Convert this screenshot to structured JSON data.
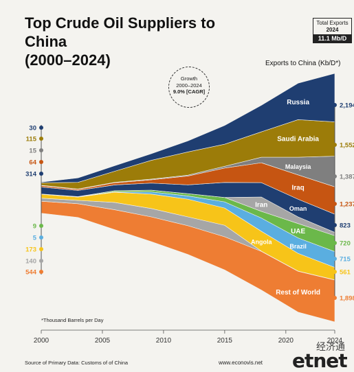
{
  "header": {
    "title_line1": "Top Crude Oil Suppliers to China",
    "title_line2": "(2000–2024)"
  },
  "total_box": {
    "label": "Total Exports",
    "year": "2024",
    "value": "11.1 Mb/D"
  },
  "exports_label": "Exports to China (Kb/D*)",
  "growth_badge": {
    "line1": "Growth",
    "line2": "2000–2024",
    "value": "9.0% [CAGR]"
  },
  "footnote": "*Thousand Barrels per Day",
  "source": "Source of Primary Data: Customs of of China",
  "site": "www.econovis.net",
  "watermark": {
    "cn": "经济通",
    "en": "etnet"
  },
  "chart_data": {
    "type": "area",
    "x": [
      2000,
      2003,
      2006,
      2009,
      2012,
      2015,
      2018,
      2021,
      2024
    ],
    "xticks": [
      "2000",
      "2005",
      "2010",
      "2015",
      "2020",
      "2024"
    ],
    "start_values": [
      "30",
      "115",
      "15",
      "64",
      "314",
      "9",
      "5",
      "173",
      "140",
      "544"
    ],
    "end_values": [
      "2,194",
      "1,552",
      "1,387",
      "1,237",
      "823",
      "720",
      "715",
      "561",
      "",
      "1,898"
    ],
    "series": [
      {
        "name": "Rest of World",
        "color": "#ee7d33",
        "values": [
          544,
          620,
          900,
          1120,
          1300,
          1500,
          1750,
          1850,
          1898
        ]
      },
      {
        "name": "",
        "color": "#a6a6a6",
        "values": [
          140,
          150,
          330,
          380,
          400,
          520,
          10,
          10,
          10
        ]
      },
      {
        "name": "Angola",
        "color": "#f7c419",
        "values": [
          173,
          150,
          460,
          650,
          800,
          780,
          900,
          800,
          561
        ]
      },
      {
        "name": "Brazil",
        "color": "#5aaee0",
        "values": [
          5,
          10,
          20,
          100,
          150,
          280,
          600,
          700,
          715
        ]
      },
      {
        "name": "UAE",
        "color": "#6bb84a",
        "values": [
          9,
          10,
          50,
          80,
          100,
          200,
          300,
          650,
          720
        ]
      },
      {
        "name": "Iran",
        "color": "#a6a6a6",
        "values": [
          0,
          0,
          0,
          0,
          0,
          0,
          650,
          300,
          150
        ]
      },
      {
        "name": "Oman",
        "color": "#1f3e71",
        "values": [
          314,
          280,
          260,
          320,
          400,
          680,
          650,
          800,
          823
        ]
      },
      {
        "name": "Iraq",
        "color": "#c65512",
        "values": [
          64,
          50,
          100,
          150,
          400,
          650,
          900,
          1100,
          1237
        ]
      },
      {
        "name": "Malaysia",
        "color": "#7f7f7f",
        "values": [
          15,
          15,
          20,
          30,
          40,
          80,
          250,
          800,
          1387
        ]
      },
      {
        "name": "Saudi Arabia",
        "color": "#9c7c09",
        "values": [
          115,
          300,
          500,
          850,
          1050,
          1000,
          1150,
          1700,
          1552
        ]
      },
      {
        "name": "Russia",
        "color": "#1f3e71",
        "values": [
          30,
          200,
          250,
          300,
          500,
          850,
          1200,
          1650,
          2194
        ]
      }
    ],
    "labels": [
      {
        "text": "Russia",
        "color": "#ffffff"
      },
      {
        "text": "Saudi Arabia",
        "color": "#ffffff"
      },
      {
        "text": "Malaysia",
        "color": "#ffffff"
      },
      {
        "text": "Iraq",
        "color": "#ffffff"
      },
      {
        "text": "Oman",
        "color": "#ffffff"
      },
      {
        "text": "Brazil",
        "color": "#ffffff"
      },
      {
        "text": "UAE",
        "color": "#ffffff"
      },
      {
        "text": "Iran",
        "color": "#ffffff"
      },
      {
        "text": "Angola",
        "color": "#ffffff"
      },
      {
        "text": "Rest of World",
        "color": "#ffffff"
      }
    ],
    "grid": false,
    "legend": "inline labels"
  }
}
